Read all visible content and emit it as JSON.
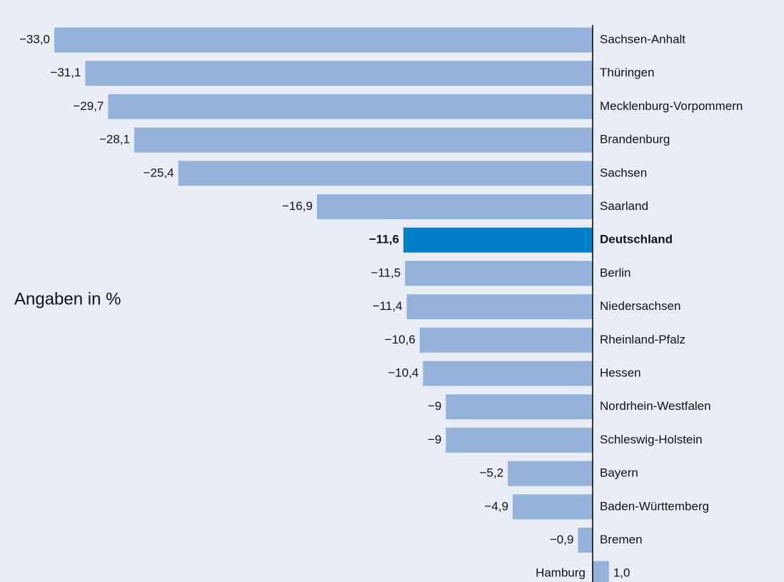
{
  "chart_data": {
    "type": "bar",
    "orientation": "horizontal",
    "annotation": "Angaben in %",
    "categories": [
      "Sachsen-Anhalt",
      "Thüringen",
      "Mecklenburg-Vorpommern",
      "Brandenburg",
      "Sachsen",
      "Saarland",
      "Deutschland",
      "Berlin",
      "Niedersachsen",
      "Rheinland-Pfalz",
      "Hessen",
      "Nordrhein-Westfalen",
      "Schleswig-Holstein",
      "Bayern",
      "Baden-Württemberg",
      "Bremen",
      "Hamburg"
    ],
    "values": [
      -33.0,
      -31.1,
      -29.7,
      -28.1,
      -25.4,
      -16.9,
      -11.6,
      -11.5,
      -11.4,
      -10.6,
      -10.4,
      -9,
      -9,
      -5.2,
      -4.9,
      -0.9,
      1.0
    ],
    "value_labels": [
      "−33,0",
      "−31,1",
      "−29,7",
      "−28,1",
      "−25,4",
      "−16,9",
      "−11,6",
      "−11,5",
      "−11,4",
      "−10,6",
      "−10,4",
      "−9",
      "−9",
      "−5,2",
      "−4,9",
      "−0,9",
      "1,0"
    ],
    "color": "#95b3da",
    "colors": [
      "#95b3da",
      "#95b3da",
      "#95b3da",
      "#95b3da",
      "#95b3da",
      "#95b3da",
      "#0080c6",
      "#95b3da",
      "#95b3da",
      "#95b3da",
      "#95b3da",
      "#95b3da",
      "#95b3da",
      "#95b3da",
      "#95b3da",
      "#95b3da",
      "#95b3da"
    ]
  }
}
